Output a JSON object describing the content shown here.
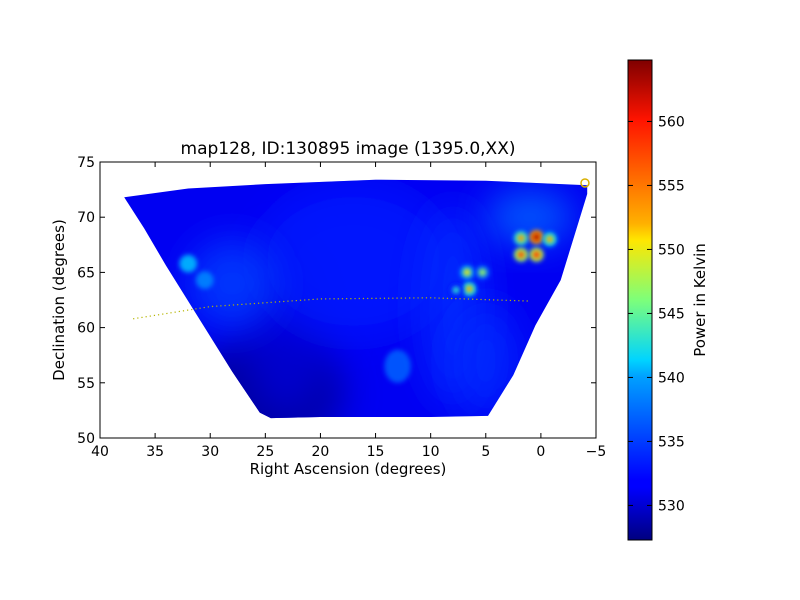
{
  "chart_data": [
    {
      "type": "heatmap",
      "title": "map128, ID:130895 image (1395.0,XX)",
      "xlabel": "Right Ascension (degrees)",
      "ylabel": "Declination (degrees)",
      "xlim": [
        40,
        -5
      ],
      "ylim": [
        50,
        75
      ],
      "xticks": [
        40,
        35,
        30,
        25,
        20,
        15,
        10,
        5,
        0,
        -5
      ],
      "xtick_labels": [
        "40",
        "35",
        "30",
        "25",
        "20",
        "15",
        "10",
        "5",
        "0",
        "−5"
      ],
      "yticks": [
        50,
        55,
        60,
        65,
        70,
        75
      ],
      "ytick_labels": [
        "50",
        "55",
        "60",
        "65",
        "70",
        "75"
      ],
      "grid": false,
      "colormap": "jet",
      "footprint": [
        [
          37.8,
          71.8
        ],
        [
          32,
          72.6
        ],
        [
          25,
          73.0
        ],
        [
          15,
          73.4
        ],
        [
          5,
          73.3
        ],
        [
          -4.2,
          72.9
        ],
        [
          -4.2,
          72.1
        ],
        [
          -1.8,
          64.3
        ],
        [
          0.5,
          60.2
        ],
        [
          2.5,
          55.7
        ],
        [
          4.8,
          52.0
        ],
        [
          10,
          51.9
        ],
        [
          16,
          51.9
        ],
        [
          20,
          51.9
        ],
        [
          24.5,
          51.8
        ],
        [
          25.5,
          52.3
        ],
        [
          28,
          56.0
        ],
        [
          31,
          60.8
        ],
        [
          34,
          65.6
        ],
        [
          36,
          69.0
        ]
      ],
      "background_level": 531,
      "blobs": [
        {
          "ra": 25,
          "dec": 54,
          "rx": 7,
          "ry": 5,
          "value": 528
        },
        {
          "ra": 23,
          "dec": 60,
          "rx": 4,
          "ry": 8,
          "value": 530
        },
        {
          "ra": 17,
          "dec": 66,
          "rx": 9,
          "ry": 7,
          "value": 533
        },
        {
          "ra": 8,
          "dec": 62,
          "rx": 3,
          "ry": 9,
          "value": 534
        },
        {
          "ra": 5,
          "dec": 57,
          "rx": 3,
          "ry": 5,
          "value": 534
        },
        {
          "ra": 28,
          "dec": 64,
          "rx": 4,
          "ry": 4,
          "value": 535
        },
        {
          "ra": 13,
          "dec": 56.5,
          "rx": 1.2,
          "ry": 1.5,
          "value": 537
        },
        {
          "ra": 1,
          "dec": 70,
          "rx": 4,
          "ry": 2.5,
          "value": 537
        },
        {
          "ra": 32,
          "dec": 65.8,
          "rx": 0.8,
          "ry": 0.8,
          "value": 541
        },
        {
          "ra": 30.5,
          "dec": 64.3,
          "rx": 0.8,
          "ry": 0.8,
          "value": 539
        }
      ],
      "hotspots": [
        {
          "ra": 1.8,
          "dec": 68.1,
          "value": 553
        },
        {
          "ra": 0.4,
          "dec": 68.2,
          "value": 563
        },
        {
          "ra": -0.8,
          "dec": 68.0,
          "value": 552
        },
        {
          "ra": 1.8,
          "dec": 66.6,
          "value": 557
        },
        {
          "ra": 0.4,
          "dec": 66.6,
          "value": 558
        },
        {
          "ra": 6.7,
          "dec": 65.0,
          "value": 550
        },
        {
          "ra": 5.3,
          "dec": 65.0,
          "value": 547
        },
        {
          "ra": 6.5,
          "dec": 63.5,
          "value": 552
        },
        {
          "ra": 7.7,
          "dec": 63.4,
          "value": 543
        }
      ],
      "overlay_curve": {
        "style": "dotted",
        "color": "#b5b500",
        "ra": [
          37,
          30,
          20,
          10,
          1
        ],
        "dec": [
          60.8,
          61.9,
          62.6,
          62.7,
          62.4
        ]
      },
      "marker": {
        "ra": -4,
        "dec": 73.1,
        "shape": "open-circle",
        "color": "#d8b000"
      },
      "colorbar": {
        "label": "Power in Kelvin",
        "min": 527.3,
        "max": 564.8,
        "ticks": [
          530,
          535,
          540,
          545,
          550,
          555,
          560
        ],
        "tick_labels": [
          "530",
          "535",
          "540",
          "545",
          "550",
          "555",
          "560"
        ]
      }
    }
  ]
}
